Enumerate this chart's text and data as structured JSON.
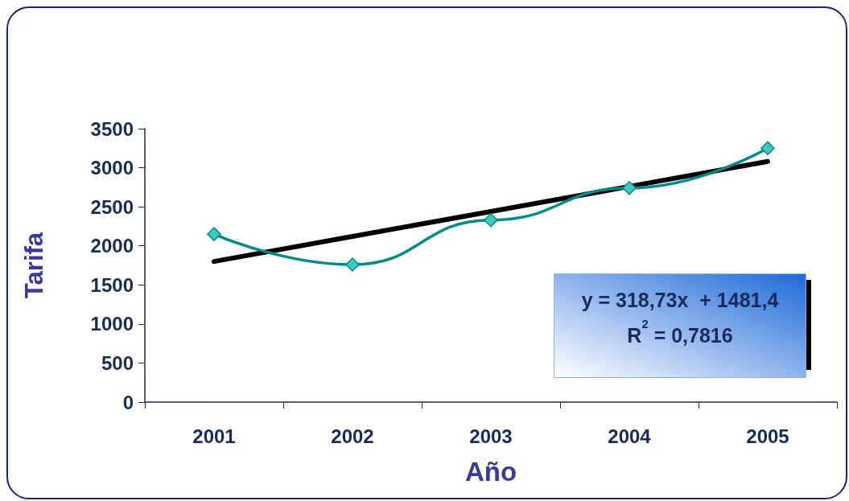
{
  "chart_data": {
    "type": "line",
    "xlabel": "Año",
    "ylabel": "Tarifa",
    "categories": [
      "2001",
      "2002",
      "2003",
      "2004",
      "2005"
    ],
    "series": [
      {
        "color": "#008b8b",
        "values": [
          2150,
          1760,
          2330,
          2740,
          3250
        ],
        "marker": "diamond"
      },
      {
        "color": "#000000",
        "values": [
          1800,
          2120,
          2440,
          2760,
          3080
        ],
        "marker": "none"
      }
    ],
    "ylim": [
      0,
      3500
    ],
    "yticks": [
      0,
      500,
      1000,
      1500,
      2000,
      2500,
      3000,
      3500
    ],
    "grid": false,
    "annotations": [
      "y = 318,73x  + 1481,4",
      "R$^{2}$ = 0,7816"
    ]
  }
}
